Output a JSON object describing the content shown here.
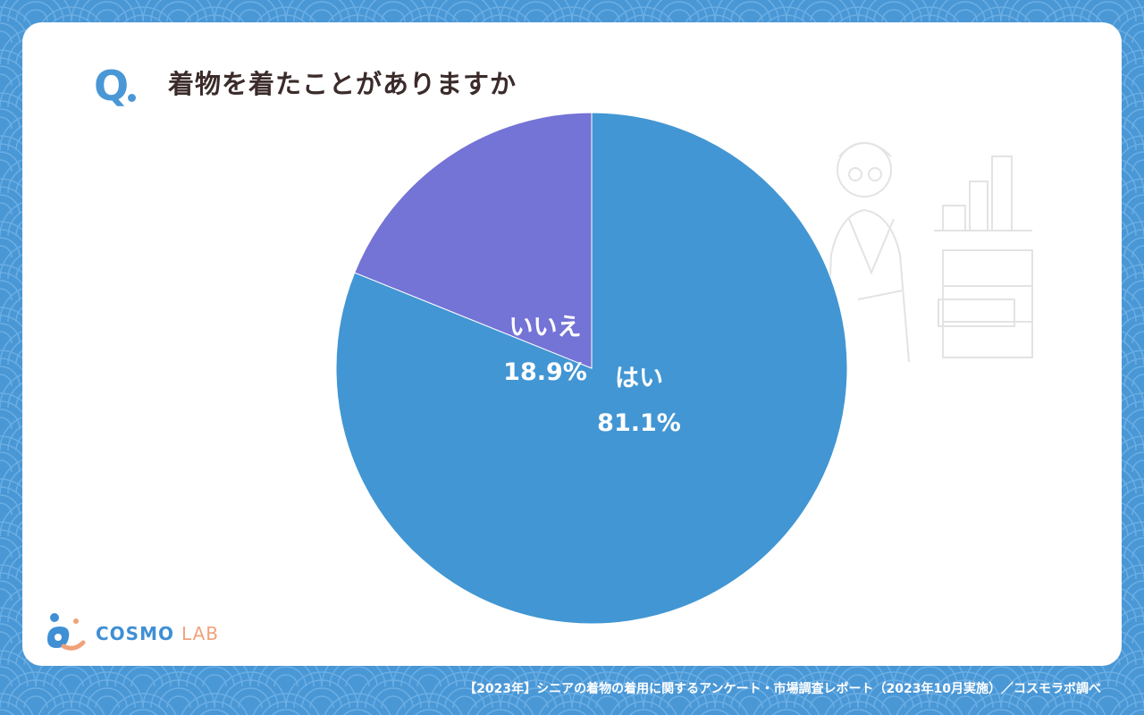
{
  "question": {
    "mark": "Q",
    "text": "着物を着たことがありますか"
  },
  "logo": {
    "cosmo": "COSMO",
    "lab": "LAB",
    "icon": "cosmo-lab-logo-icon"
  },
  "footer": {
    "source": "【2023年】シニアの着物の着用に関するアンケート・市場調査レポート（2023年10月実施）／コスモラボ調べ"
  },
  "colors": {
    "background": "#4a97d6",
    "yes": "#4296d3",
    "no": "#7473d6",
    "title": "#3b2b2b",
    "logo_lab": "#f0a27a"
  },
  "chart_data": {
    "type": "pie",
    "title": "着物を着たことがありますか",
    "slices": [
      {
        "label": "はい",
        "value": 81.1,
        "display": "81.1%",
        "color": "#4296d3"
      },
      {
        "label": "いいえ",
        "value": 18.9,
        "display": "18.9%",
        "color": "#7473d6"
      }
    ],
    "start_angle": "12 o'clock",
    "direction": "clockwise",
    "legend": "none",
    "labels_inside": true
  }
}
